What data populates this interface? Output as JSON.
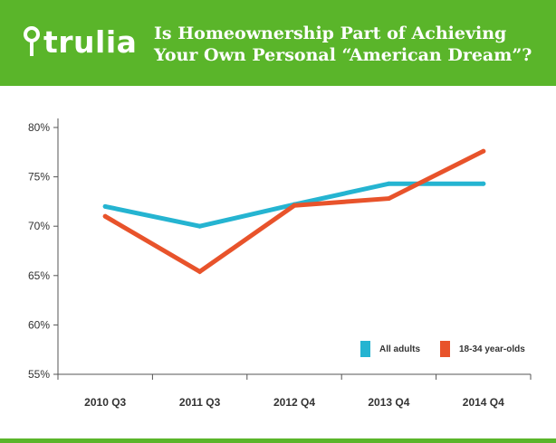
{
  "header": {
    "logo_text": "trulia",
    "title_line1": "Is Homeownership Part of Achieving",
    "title_line2": "Your Own Personal “American Dream”?"
  },
  "colors": {
    "brand_green": "#5ab52a",
    "all_adults": "#25b4d1",
    "young_adults": "#e8532b"
  },
  "chart_data": {
    "type": "line",
    "title": "Is Homeownership Part of Achieving Your Own Personal “American Dream”?",
    "xlabel": "",
    "ylabel": "",
    "categories": [
      "2010 Q3",
      "2011 Q3",
      "2012 Q4",
      "2013 Q4",
      "2014 Q4"
    ],
    "ylim": [
      55,
      80
    ],
    "yticks": [
      55,
      60,
      65,
      70,
      75,
      80
    ],
    "ytick_labels": [
      "55%",
      "60%",
      "65%",
      "70%",
      "75%",
      "80%"
    ],
    "grid": false,
    "legend_position": "bottom-right",
    "series": [
      {
        "name": "All adults",
        "color": "#25b4d1",
        "values": [
          72.0,
          70.0,
          72.2,
          74.3,
          74.3
        ]
      },
      {
        "name": "18-34 year-olds",
        "color": "#e8532b",
        "values": [
          71.0,
          65.4,
          72.1,
          72.8,
          77.6
        ]
      }
    ]
  }
}
